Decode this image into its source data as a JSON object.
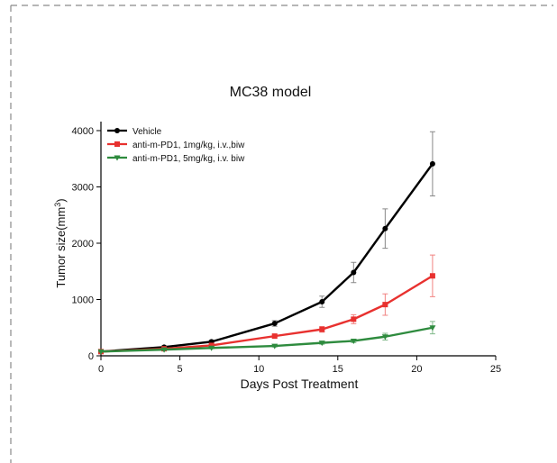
{
  "chart_data": {
    "type": "line",
    "title": "MC38 model",
    "xlabel": "Days Post Treatment",
    "ylabel_prefix": "Tumor size(mm",
    "ylabel_sup": "3",
    "ylabel_suffix": ")",
    "xlim": [
      0,
      25
    ],
    "ylim": [
      0,
      4000
    ],
    "xticks": [
      0,
      5,
      10,
      15,
      20,
      25
    ],
    "yticks": [
      0,
      1000,
      2000,
      3000,
      4000
    ],
    "grid": false,
    "legend_position": "top-left",
    "series": [
      {
        "name": "Vehicle",
        "color": "#000000",
        "marker": "circle",
        "x": [
          0,
          4,
          7,
          11,
          14,
          16,
          18,
          21
        ],
        "y": [
          75,
          155,
          250,
          575,
          960,
          1480,
          2260,
          3410
        ],
        "err": [
          15,
          20,
          25,
          50,
          100,
          180,
          350,
          570
        ]
      },
      {
        "name": "anti-m-PD1, 1mg/kg, i.v.,biw",
        "color": "#e8312f",
        "marker": "square",
        "x": [
          0,
          4,
          7,
          11,
          14,
          16,
          18,
          21
        ],
        "y": [
          75,
          125,
          185,
          350,
          470,
          650,
          910,
          1420
        ],
        "err": [
          10,
          15,
          20,
          30,
          50,
          80,
          190,
          370
        ]
      },
      {
        "name": "anti-m-PD1, 5mg/kg, i.v. biw",
        "color": "#2e8b3e",
        "marker": "triangle-down",
        "x": [
          0,
          4,
          7,
          11,
          14,
          16,
          18,
          21
        ],
        "y": [
          75,
          110,
          140,
          175,
          230,
          265,
          340,
          500
        ],
        "err": [
          10,
          10,
          15,
          20,
          25,
          30,
          60,
          110
        ]
      }
    ]
  }
}
